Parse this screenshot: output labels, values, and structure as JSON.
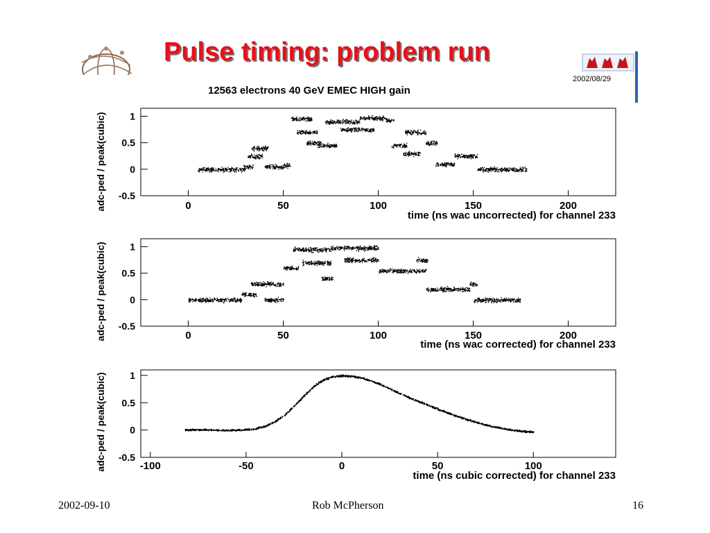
{
  "slide": {
    "title": "Pulse timing: problem run",
    "subtitle": "12563 electrons 40 GeV EMEC HIGH gain",
    "date_stamp": "2002/08/29",
    "footer_date": "2002-09-10",
    "footer_author": "Rob McPherson",
    "footer_page": "16",
    "title_color": "#e8101a"
  },
  "icons": {
    "left_logo": "atom-globe-logo",
    "right_logo": "red-figures-logo"
  },
  "chart_data": [
    {
      "type": "scatter",
      "xlabel": "time (ns wac uncorrected) for channel 233",
      "ylabel": "adc-ped / peak(cubic)",
      "xlim": [
        -25,
        225
      ],
      "ylim": [
        -0.5,
        1.15
      ],
      "xticks": [
        "0",
        "50",
        "100",
        "150",
        "200"
      ],
      "yticks": [
        "-0.5",
        "0",
        "0.5",
        "1"
      ],
      "grid": false,
      "clusters": [
        {
          "x": [
            5,
            30
          ],
          "y": 0.0
        },
        {
          "x": [
            29,
            34
          ],
          "y": 0.05
        },
        {
          "x": [
            31,
            39
          ],
          "y": 0.25
        },
        {
          "x": [
            33,
            42
          ],
          "y": 0.4
        },
        {
          "x": [
            40,
            50
          ],
          "y": 0.05
        },
        {
          "x": [
            50,
            54
          ],
          "y": 0.07
        },
        {
          "x": [
            54,
            65
          ],
          "y": 0.95
        },
        {
          "x": [
            57,
            68
          ],
          "y": 0.7
        },
        {
          "x": [
            62,
            70
          ],
          "y": 0.5
        },
        {
          "x": [
            68,
            78
          ],
          "y": 0.45
        },
        {
          "x": [
            72,
            90
          ],
          "y": 0.9
        },
        {
          "x": [
            80,
            98
          ],
          "y": 0.75
        },
        {
          "x": [
            90,
            104
          ],
          "y": 0.97
        },
        {
          "x": [
            104,
            108
          ],
          "y": 0.93
        },
        {
          "x": [
            107,
            115
          ],
          "y": 0.45
        },
        {
          "x": [
            114,
            125
          ],
          "y": 0.7
        },
        {
          "x": [
            113,
            122
          ],
          "y": 0.3
        },
        {
          "x": [
            125,
            131
          ],
          "y": 0.5
        },
        {
          "x": [
            130,
            140
          ],
          "y": 0.1
        },
        {
          "x": [
            140,
            152
          ],
          "y": 0.25
        },
        {
          "x": [
            152,
            178
          ],
          "y": 0.0
        }
      ]
    },
    {
      "type": "scatter",
      "xlabel": "time (ns wac corrected) for channel 233",
      "ylabel": "adc-ped / peak(cubic)",
      "xlim": [
        -25,
        225
      ],
      "ylim": [
        -0.5,
        1.15
      ],
      "xticks": [
        "0",
        "50",
        "100",
        "150",
        "200"
      ],
      "yticks": [
        "-0.5",
        "0",
        "0.5",
        "1"
      ],
      "grid": false,
      "clusters": [
        {
          "x": [
            0,
            28
          ],
          "y": 0.0
        },
        {
          "x": [
            28,
            36
          ],
          "y": 0.1
        },
        {
          "x": [
            33,
            50
          ],
          "y": 0.3
        },
        {
          "x": [
            40,
            50
          ],
          "y": 0.0
        },
        {
          "x": [
            50,
            58
          ],
          "y": 0.6
        },
        {
          "x": [
            55,
            75
          ],
          "y": 0.95
        },
        {
          "x": [
            60,
            75
          ],
          "y": 0.7
        },
        {
          "x": [
            70,
            76
          ],
          "y": 0.4
        },
        {
          "x": [
            75,
            100
          ],
          "y": 0.98
        },
        {
          "x": [
            82,
            100
          ],
          "y": 0.75
        },
        {
          "x": [
            100,
            125
          ],
          "y": 0.55
        },
        {
          "x": [
            120,
            126
          ],
          "y": 0.75
        },
        {
          "x": [
            125,
            148
          ],
          "y": 0.2
        },
        {
          "x": [
            148,
            152
          ],
          "y": 0.3
        },
        {
          "x": [
            150,
            175
          ],
          "y": 0.0
        }
      ]
    },
    {
      "type": "scatter",
      "xlabel": "time (ns cubic corrected) for channel 233",
      "ylabel": "adc-ped / peak(cubic)",
      "xlim": [
        -105,
        143
      ],
      "ylim": [
        -0.5,
        1.1
      ],
      "xticks": [
        "-100",
        "-50",
        "0",
        "50",
        "100"
      ],
      "yticks": [
        "-0.5",
        "0",
        "0.5",
        "1"
      ],
      "grid": false,
      "curve": {
        "x": [
          -82,
          -70,
          -60,
          -50,
          -45,
          -40,
          -35,
          -30,
          -25,
          -20,
          -15,
          -10,
          -5,
          0,
          5,
          10,
          15,
          20,
          25,
          30,
          35,
          40,
          45,
          50,
          55,
          60,
          65,
          70,
          75,
          80,
          85,
          90,
          95,
          100
        ],
        "y": [
          0.01,
          0.01,
          0.0,
          0.01,
          0.03,
          0.08,
          0.16,
          0.28,
          0.45,
          0.63,
          0.8,
          0.92,
          0.98,
          1.0,
          0.99,
          0.96,
          0.91,
          0.84,
          0.76,
          0.68,
          0.6,
          0.53,
          0.46,
          0.39,
          0.32,
          0.26,
          0.2,
          0.15,
          0.1,
          0.06,
          0.03,
          0.0,
          -0.02,
          -0.03
        ]
      }
    }
  ]
}
